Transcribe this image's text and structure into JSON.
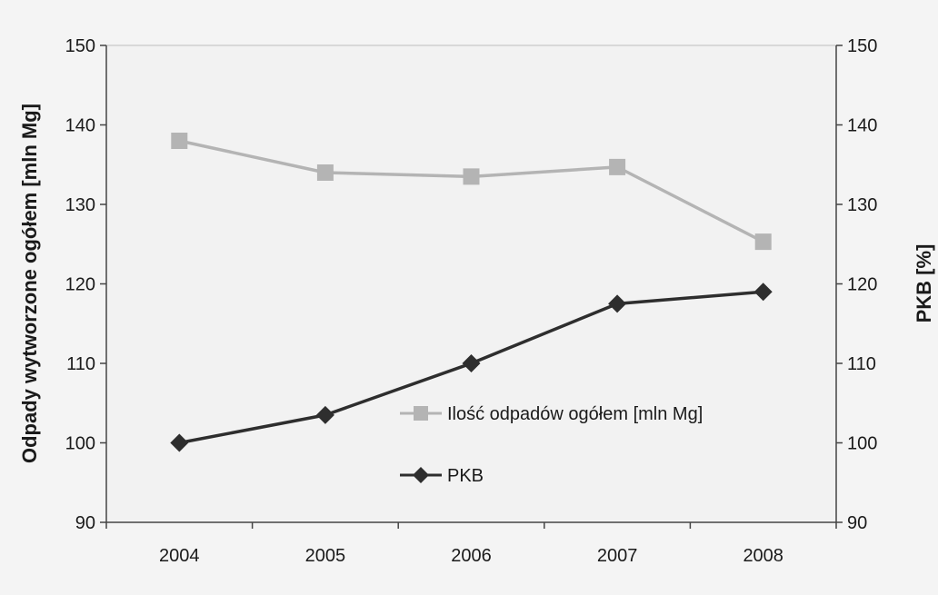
{
  "chart_data": {
    "type": "line",
    "categories": [
      "2004",
      "2005",
      "2006",
      "2007",
      "2008"
    ],
    "series": [
      {
        "name": "Ilość odpadów ogółem [mln Mg]",
        "values": [
          138,
          134,
          133.5,
          134.7,
          125.3
        ],
        "color": "#b4b4b4",
        "marker": "square",
        "axis": "left"
      },
      {
        "name": "PKB",
        "values": [
          100,
          103.5,
          110,
          117.5,
          119
        ],
        "color": "#2e2e2e",
        "marker": "diamond",
        "axis": "right"
      }
    ],
    "ylabel": "Odpady wytworzone ogółem [mln Mg]",
    "y2label": "PKB [%]",
    "ylim": [
      90,
      150
    ],
    "y2lim": [
      90,
      150
    ],
    "yticks": [
      "90",
      "100",
      "110",
      "120",
      "130",
      "140",
      "150"
    ],
    "y2ticks": [
      "90",
      "100",
      "110",
      "120",
      "130",
      "140",
      "150"
    ],
    "grid": false,
    "legend_position": "inside-center-bottom"
  }
}
